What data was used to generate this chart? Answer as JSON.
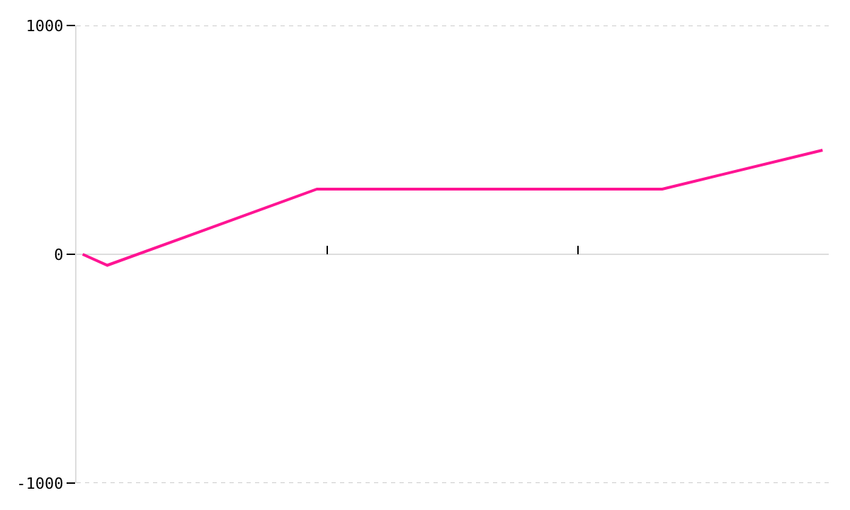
{
  "chart_data": {
    "type": "line",
    "categories": [
      null,
      null,
      null,
      null,
      null,
      null,
      null,
      null,
      null,
      null,
      null,
      null,
      null,
      null,
      null,
      null,
      null,
      null,
      null,
      null,
      null,
      null,
      null,
      null,
      null,
      null,
      null,
      null,
      null,
      null,
      null,
      null,
      null,
      null,
      null,
      null,
      null,
      null,
      null,
      null,
      null,
      null,
      null,
      null,
      null,
      null,
      null,
      null,
      null,
      null,
      null,
      null,
      null,
      null,
      null,
      null,
      null,
      null,
      null,
      null,
      null
    ],
    "series": [
      {
        "color": "#ff1493",
        "values": [
          0,
          null,
          -48,
          null,
          null,
          null,
          null,
          null,
          null,
          null,
          null,
          null,
          null,
          null,
          null,
          null,
          null,
          null,
          null,
          285,
          null,
          null,
          null,
          null,
          null,
          null,
          null,
          null,
          null,
          null,
          null,
          null,
          null,
          null,
          null,
          null,
          null,
          null,
          null,
          null,
          null,
          null,
          null,
          null,
          null,
          null,
          null,
          285,
          null,
          null,
          null,
          null,
          null,
          null,
          null,
          null,
          null,
          null,
          null,
          null,
          455
        ]
      }
    ],
    "ylim": [
      -1000,
      1000
    ],
    "yticks": [
      -1000,
      0,
      1000
    ],
    "tick_labels": "y",
    "grid": "y",
    "legend": false,
    "marker": "none",
    "line_style": "solid"
  }
}
